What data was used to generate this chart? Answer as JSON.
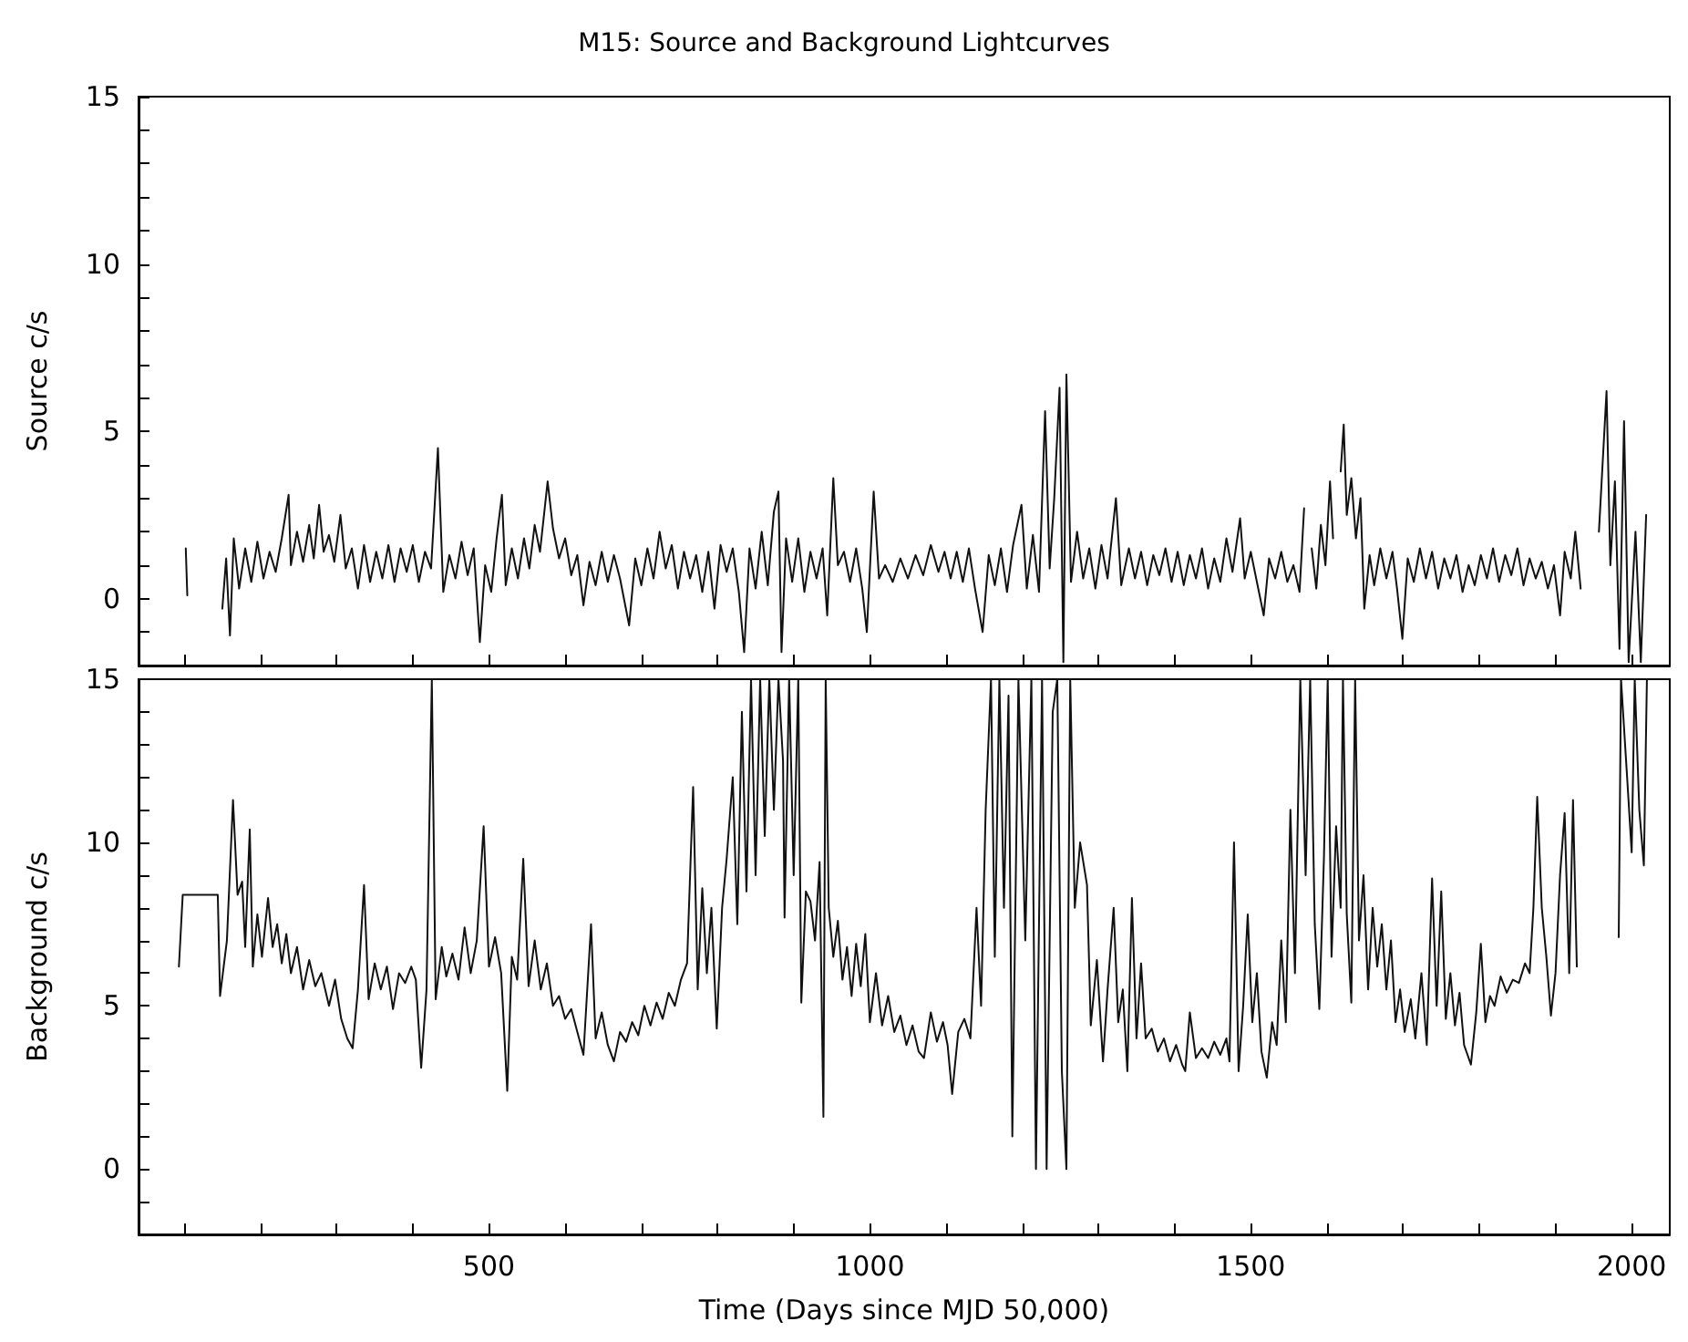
{
  "chart_data": [
    {
      "type": "line",
      "title": "M15: Source and Background Lightcurves",
      "ylabel": "Source c/s",
      "tick_labels": "y",
      "grid": false,
      "marker": "none",
      "line_style": "solid",
      "xlim": [
        40,
        2050
      ],
      "ylim": [
        -2,
        15
      ],
      "xticks": [
        {
          "value": 100,
          "label": null
        },
        {
          "value": 200,
          "label": null
        },
        {
          "value": 300,
          "label": null
        },
        {
          "value": 400,
          "label": null
        },
        500,
        {
          "value": 600,
          "label": null
        },
        {
          "value": 700,
          "label": null
        },
        {
          "value": 800,
          "label": null
        },
        {
          "value": 900,
          "label": null
        },
        1000,
        {
          "value": 1100,
          "label": null
        },
        {
          "value": 1200,
          "label": null
        },
        {
          "value": 1300,
          "label": null
        },
        {
          "value": 1400,
          "label": null
        },
        1500,
        {
          "value": 1600,
          "label": null
        },
        {
          "value": 1700,
          "label": null
        },
        {
          "value": 1800,
          "label": null
        },
        {
          "value": 1900,
          "label": null
        },
        2000
      ],
      "yticks": [
        {
          "value": -1,
          "label": null
        },
        0,
        {
          "value": 1,
          "label": null
        },
        {
          "value": 2,
          "label": null
        },
        {
          "value": 3,
          "label": null
        },
        {
          "value": 4,
          "label": null
        },
        5,
        {
          "value": 6,
          "label": null
        },
        {
          "value": 7,
          "label": null
        },
        {
          "value": 8,
          "label": null
        },
        {
          "value": 9,
          "label": null
        },
        10,
        {
          "value": 11,
          "label": null
        },
        {
          "value": 12,
          "label": null
        },
        {
          "value": 13,
          "label": null
        },
        {
          "value": 14,
          "label": null
        },
        15
      ],
      "series": [
        {
          "color": "#111111",
          "x": [
            102,
            104,
            126,
            150,
            155,
            160,
            165,
            172,
            180,
            188,
            196,
            204,
            212,
            220,
            228,
            237,
            240,
            248,
            256,
            264,
            270,
            277,
            283,
            290,
            297,
            305,
            312,
            320,
            328,
            336,
            344,
            352,
            360,
            368,
            376,
            384,
            392,
            400,
            408,
            416,
            424,
            433,
            440,
            448,
            456,
            464,
            472,
            480,
            488,
            495,
            503,
            510,
            517,
            522,
            530,
            538,
            546,
            553,
            560,
            567,
            577,
            584,
            592,
            600,
            608,
            616,
            624,
            632,
            640,
            648,
            656,
            664,
            672,
            684,
            692,
            700,
            708,
            716,
            724,
            732,
            740,
            748,
            756,
            764,
            772,
            780,
            788,
            796,
            804,
            812,
            820,
            828,
            835,
            842,
            850,
            858,
            866,
            874,
            880,
            884,
            890,
            898,
            906,
            914,
            922,
            930,
            938,
            944,
            952,
            958,
            966,
            974,
            982,
            990,
            996,
            1005,
            1012,
            1020,
            1030,
            1040,
            1050,
            1060,
            1070,
            1080,
            1090,
            1098,
            1106,
            1114,
            1122,
            1130,
            1138,
            1148,
            1156,
            1164,
            1172,
            1180,
            1188,
            1199,
            1206,
            1214,
            1222,
            1230,
            1236,
            1242,
            1249,
            1254,
            1258,
            1264,
            1272,
            1280,
            1288,
            1296,
            1304,
            1312,
            1323,
            1330,
            1340,
            1348,
            1356,
            1364,
            1372,
            1380,
            1388,
            1396,
            1404,
            1412,
            1420,
            1428,
            1436,
            1444,
            1452,
            1460,
            1468,
            1476,
            1486,
            1492,
            1500,
            1508,
            1517,
            1524,
            1532,
            1540,
            1548,
            1556,
            1564,
            1570,
            1574,
            1580,
            1586,
            1592,
            1598,
            1604,
            1608,
            1613,
            1618,
            1622,
            1626,
            1632,
            1638,
            1644,
            1649,
            1656,
            1662,
            1670,
            1678,
            1686,
            1692,
            1699,
            1706,
            1714,
            1722,
            1730,
            1738,
            1746,
            1754,
            1762,
            1770,
            1778,
            1786,
            1794,
            1802,
            1810,
            1818,
            1826,
            1834,
            1842,
            1850,
            1858,
            1866,
            1874,
            1882,
            1890,
            1898,
            1906,
            1912,
            1920,
            1926,
            1933,
            1945,
            1957,
            1967,
            1972,
            1978,
            1984,
            1990,
            1996,
            2005,
            2012,
            2019
          ],
          "values": [
            1.5,
            0.1,
            null,
            -0.3,
            1.2,
            -1.1,
            1.8,
            0.3,
            1.5,
            0.5,
            1.7,
            0.6,
            1.4,
            0.8,
            1.8,
            3.1,
            1.0,
            2.0,
            1.1,
            2.2,
            1.2,
            2.8,
            1.4,
            1.9,
            1.1,
            2.5,
            0.9,
            1.5,
            0.3,
            1.6,
            0.5,
            1.4,
            0.6,
            1.6,
            0.5,
            1.5,
            0.8,
            1.6,
            0.5,
            1.4,
            0.9,
            4.5,
            0.2,
            1.3,
            0.6,
            1.7,
            0.7,
            1.5,
            -1.3,
            1.0,
            0.2,
            1.8,
            3.1,
            0.4,
            1.5,
            0.6,
            1.8,
            0.9,
            2.2,
            1.4,
            3.5,
            2.1,
            1.2,
            1.8,
            0.7,
            1.3,
            -0.2,
            1.1,
            0.4,
            1.4,
            0.5,
            1.3,
            0.6,
            -0.8,
            1.2,
            0.4,
            1.5,
            0.6,
            2.0,
            0.9,
            1.6,
            0.3,
            1.4,
            0.6,
            1.3,
            0.2,
            1.4,
            -0.3,
            1.6,
            0.8,
            1.5,
            0.2,
            -1.6,
            1.5,
            0.3,
            2.0,
            0.4,
            2.6,
            3.2,
            -1.6,
            1.8,
            0.5,
            1.8,
            0.2,
            1.4,
            0.6,
            1.5,
            -0.5,
            3.6,
            1.0,
            1.4,
            0.5,
            1.5,
            0.3,
            -1.0,
            3.2,
            0.6,
            1.0,
            0.5,
            1.2,
            0.6,
            1.3,
            0.7,
            1.6,
            0.8,
            1.4,
            0.6,
            1.4,
            0.5,
            1.5,
            0.3,
            -1.0,
            1.3,
            0.4,
            1.5,
            0.2,
            1.6,
            2.8,
            0.3,
            1.9,
            0.2,
            5.6,
            0.9,
            3.0,
            6.3,
            -1.9,
            6.7,
            0.5,
            2.0,
            0.6,
            1.5,
            0.3,
            1.6,
            0.6,
            3.0,
            0.4,
            1.5,
            0.6,
            1.4,
            0.4,
            1.3,
            0.7,
            1.5,
            0.5,
            1.4,
            0.4,
            1.3,
            0.6,
            1.5,
            0.3,
            1.2,
            0.5,
            1.8,
            0.8,
            2.4,
            0.6,
            1.4,
            0.5,
            -0.5,
            1.2,
            0.6,
            1.4,
            0.5,
            1.0,
            0.2,
            2.7,
            null,
            1.5,
            0.3,
            2.2,
            1.0,
            3.5,
            1.8,
            null,
            3.8,
            5.2,
            2.5,
            3.6,
            1.8,
            3.0,
            -0.3,
            1.3,
            0.4,
            1.5,
            0.6,
            1.4,
            0.3,
            -1.2,
            1.2,
            0.5,
            1.5,
            0.6,
            1.4,
            0.3,
            1.2,
            0.6,
            1.3,
            0.2,
            1.0,
            0.4,
            1.3,
            0.6,
            1.5,
            0.5,
            1.3,
            0.7,
            1.5,
            0.4,
            1.2,
            0.6,
            1.1,
            0.3,
            1.0,
            -0.5,
            1.4,
            0.6,
            2.0,
            0.3,
            null,
            2.0,
            6.2,
            1.0,
            3.5,
            -1.5,
            5.3,
            -1.9,
            2.0,
            -1.9,
            2.5
          ]
        }
      ]
    },
    {
      "type": "line",
      "xlabel": "Time (Days since MJD 50,000)",
      "ylabel": "Background c/s",
      "grid": false,
      "marker": "none",
      "line_style": "solid",
      "xlim": [
        40,
        2050
      ],
      "ylim": [
        -2,
        15
      ],
      "xticks": [
        {
          "value": 100,
          "label": null
        },
        {
          "value": 200,
          "label": null
        },
        {
          "value": 300,
          "label": null
        },
        {
          "value": 400,
          "label": null
        },
        500,
        {
          "value": 600,
          "label": null
        },
        {
          "value": 700,
          "label": null
        },
        {
          "value": 800,
          "label": null
        },
        {
          "value": 900,
          "label": null
        },
        1000,
        {
          "value": 1100,
          "label": null
        },
        {
          "value": 1200,
          "label": null
        },
        {
          "value": 1300,
          "label": null
        },
        {
          "value": 1400,
          "label": null
        },
        1500,
        {
          "value": 1600,
          "label": null
        },
        {
          "value": 1700,
          "label": null
        },
        {
          "value": 1800,
          "label": null
        },
        {
          "value": 1900,
          "label": null
        },
        2000
      ],
      "yticks": [
        {
          "value": -1,
          "label": null
        },
        0,
        {
          "value": 1,
          "label": null
        },
        {
          "value": 2,
          "label": null
        },
        {
          "value": 3,
          "label": null
        },
        {
          "value": 4,
          "label": null
        },
        5,
        {
          "value": 6,
          "label": null
        },
        {
          "value": 7,
          "label": null
        },
        {
          "value": 8,
          "label": null
        },
        {
          "value": 9,
          "label": null
        },
        10,
        {
          "value": 11,
          "label": null
        },
        {
          "value": 12,
          "label": null
        },
        {
          "value": 13,
          "label": null
        },
        {
          "value": 14,
          "label": null
        },
        15
      ],
      "series": [
        {
          "color": "#111111",
          "x": [
            93,
            98,
            144,
            147,
            156,
            164,
            170,
            176,
            180,
            186,
            190,
            196,
            202,
            210,
            216,
            222,
            228,
            234,
            240,
            248,
            256,
            264,
            272,
            280,
            290,
            298,
            306,
            314,
            321,
            328,
            336,
            342,
            350,
            358,
            366,
            374,
            382,
            390,
            398,
            404,
            411,
            418,
            425,
            430,
            438,
            444,
            452,
            460,
            468,
            476,
            484,
            493,
            500,
            508,
            516,
            524,
            530,
            537,
            545,
            552,
            560,
            568,
            576,
            584,
            592,
            600,
            608,
            616,
            624,
            634,
            640,
            648,
            656,
            664,
            672,
            680,
            688,
            696,
            704,
            712,
            720,
            728,
            736,
            744,
            752,
            760,
            768,
            774,
            780,
            786,
            792,
            799,
            806,
            812,
            820,
            826,
            832,
            838,
            844,
            850,
            856,
            862,
            868,
            874,
            880,
            886,
            888,
            894,
            900,
            906,
            910,
            916,
            922,
            928,
            934,
            939,
            942,
            946,
            952,
            958,
            964,
            970,
            976,
            982,
            988,
            994,
            1000,
            1008,
            1016,
            1024,
            1032,
            1040,
            1048,
            1056,
            1064,
            1071,
            1080,
            1088,
            1096,
            1102,
            1108,
            1116,
            1124,
            1132,
            1140,
            1146,
            1152,
            1159,
            1164,
            1170,
            1176,
            1182,
            1187,
            1195,
            1204,
            1212,
            1218,
            1226,
            1232,
            1240,
            1246,
            1252,
            1258,
            1263,
            1269,
            1276,
            1285,
            1290,
            1298,
            1306,
            1312,
            1320,
            1326,
            1332,
            1338,
            1344,
            1350,
            1356,
            1362,
            1370,
            1378,
            1386,
            1394,
            1402,
            1410,
            1414,
            1420,
            1428,
            1436,
            1444,
            1452,
            1460,
            1468,
            1472,
            1478,
            1484,
            1490,
            1496,
            1502,
            1508,
            1514,
            1521,
            1528,
            1534,
            1540,
            1546,
            1552,
            1558,
            1565,
            1572,
            1578,
            1584,
            1590,
            1596,
            1601,
            1606,
            1612,
            1618,
            1621,
            1626,
            1632,
            1637,
            1642,
            1648,
            1654,
            1660,
            1666,
            1672,
            1678,
            1684,
            1690,
            1696,
            1702,
            1710,
            1716,
            1724,
            1731,
            1738,
            1744,
            1750,
            1756,
            1762,
            1768,
            1774,
            1780,
            1789,
            1796,
            1802,
            1808,
            1814,
            1820,
            1828,
            1836,
            1844,
            1852,
            1860,
            1866,
            1871,
            1876,
            1882,
            1888,
            1894,
            1900,
            1906,
            1912,
            1918,
            1923,
            1928,
            1940,
            1983,
            1986,
            1994,
            2000,
            2004,
            2010,
            2016,
            2020
          ],
          "values": [
            6.2,
            8.4,
            8.4,
            5.3,
            7.0,
            11.3,
            8.4,
            8.8,
            6.8,
            10.4,
            6.2,
            7.8,
            6.5,
            8.3,
            6.8,
            7.5,
            6.3,
            7.2,
            6.0,
            6.8,
            5.5,
            6.4,
            5.6,
            6.0,
            5.0,
            5.8,
            4.6,
            4.0,
            3.7,
            5.5,
            8.7,
            5.2,
            6.3,
            5.5,
            6.2,
            4.9,
            6.0,
            5.7,
            6.2,
            5.8,
            3.1,
            5.5,
            15,
            5.2,
            6.8,
            5.9,
            6.6,
            5.8,
            7.4,
            6.0,
            7.0,
            10.5,
            6.2,
            7.1,
            6.0,
            2.4,
            6.5,
            5.8,
            9.5,
            5.6,
            7.0,
            5.5,
            6.3,
            5.0,
            5.3,
            4.6,
            4.9,
            4.2,
            3.5,
            7.5,
            4.0,
            4.8,
            3.8,
            3.3,
            4.2,
            3.9,
            4.5,
            4.1,
            5.0,
            4.4,
            5.1,
            4.6,
            5.4,
            5.0,
            5.8,
            6.3,
            11.7,
            5.5,
            8.6,
            6.0,
            8.0,
            4.3,
            8.0,
            9.5,
            12.0,
            7.5,
            14.0,
            8.5,
            15,
            9.0,
            15,
            10.2,
            15,
            11.0,
            15,
            12.5,
            7.7,
            15,
            9.0,
            15,
            5.1,
            8.5,
            8.2,
            7.0,
            9.4,
            1.6,
            15,
            8.0,
            6.5,
            7.6,
            5.8,
            6.8,
            5.3,
            6.9,
            5.6,
            7.2,
            4.5,
            6.0,
            4.4,
            5.3,
            4.2,
            4.7,
            3.8,
            4.4,
            3.6,
            3.4,
            4.8,
            3.9,
            4.5,
            3.8,
            2.3,
            4.2,
            4.6,
            4.0,
            8.0,
            5.0,
            11.0,
            15,
            6.5,
            15,
            8.0,
            14.5,
            1.0,
            15,
            7.0,
            15,
            0,
            15,
            0,
            14,
            15,
            3,
            0,
            15,
            8.0,
            10.0,
            8.7,
            4.4,
            6.4,
            3.3,
            5.5,
            8.0,
            4.5,
            5.5,
            3.0,
            8.3,
            4.0,
            6.3,
            4.0,
            4.3,
            3.6,
            4.0,
            3.3,
            3.8,
            3.2,
            3.0,
            4.8,
            3.4,
            3.7,
            3.4,
            3.9,
            3.5,
            4.0,
            3.3,
            10.0,
            3.0,
            5.0,
            7.8,
            4.5,
            6.0,
            3.6,
            2.8,
            4.5,
            3.8,
            7.0,
            4.5,
            11.0,
            6.0,
            15,
            9.0,
            15,
            7.5,
            4.9,
            9.5,
            15,
            6.5,
            10.5,
            8.0,
            15,
            7.8,
            5.1,
            15,
            7.0,
            9.0,
            5.5,
            8.0,
            6.2,
            7.5,
            5.5,
            7.0,
            4.5,
            5.5,
            4.2,
            5.2,
            4.0,
            6.0,
            3.8,
            8.9,
            5.0,
            8.5,
            4.6,
            6.0,
            4.4,
            5.4,
            3.8,
            3.2,
            4.8,
            6.9,
            4.5,
            5.3,
            5.0,
            5.9,
            5.4,
            5.8,
            5.7,
            6.3,
            6.0,
            8.0,
            11.4,
            8.0,
            6.5,
            4.7,
            6.0,
            9.0,
            10.9,
            6.0,
            11.3,
            6.2,
            null,
            7.1,
            15,
            12,
            9.7,
            15,
            11,
            9.3,
            15
          ]
        }
      ]
    }
  ]
}
